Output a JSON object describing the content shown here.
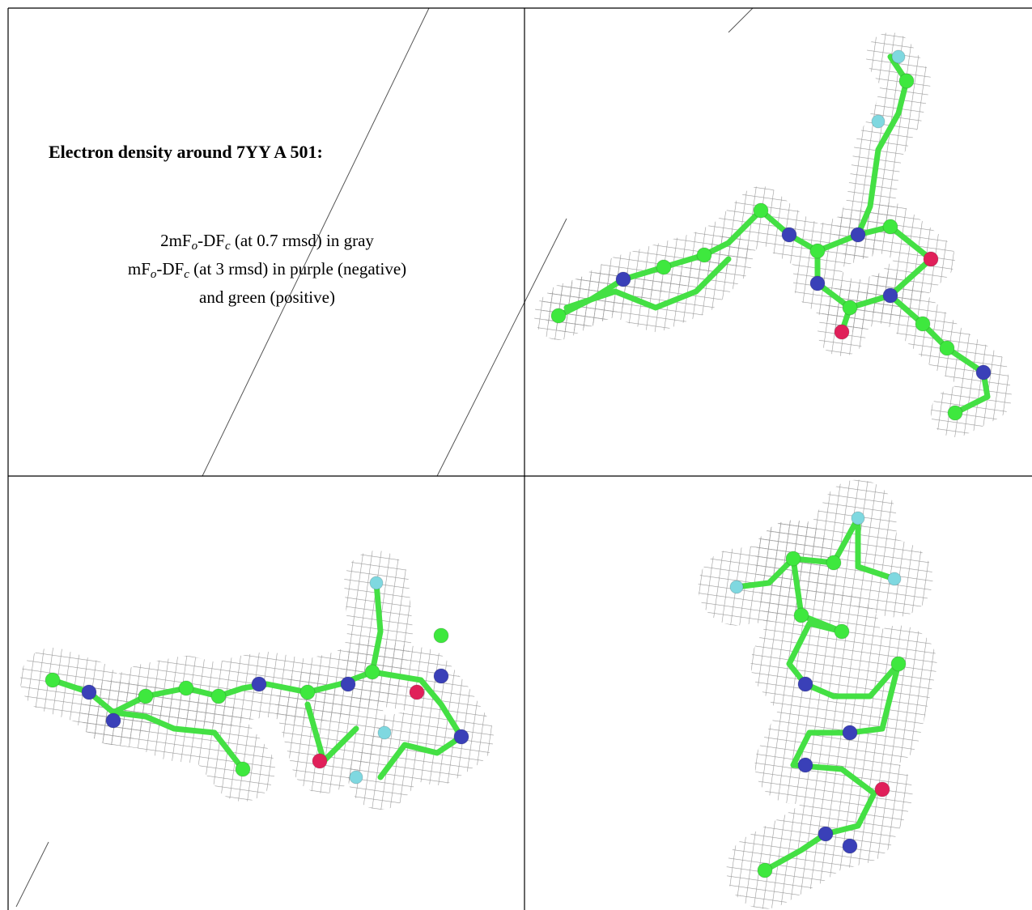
{
  "header": {
    "title": "Electron density around 7YY A 501:"
  },
  "legend": {
    "lines": [
      [
        {
          "text": "2mF"
        },
        {
          "sub": "o"
        },
        {
          "text": "-DF"
        },
        {
          "sub": "c"
        },
        {
          "text": " (at 0.7 rmsd) in gray"
        }
      ],
      [
        {
          "text": "mF"
        },
        {
          "sub": "o"
        },
        {
          "text": "-DF"
        },
        {
          "sub": "c"
        },
        {
          "text": " (at 3 rmsd) in purple (negative)"
        }
      ],
      [
        {
          "text": "and green (positive)"
        }
      ]
    ]
  }
}
